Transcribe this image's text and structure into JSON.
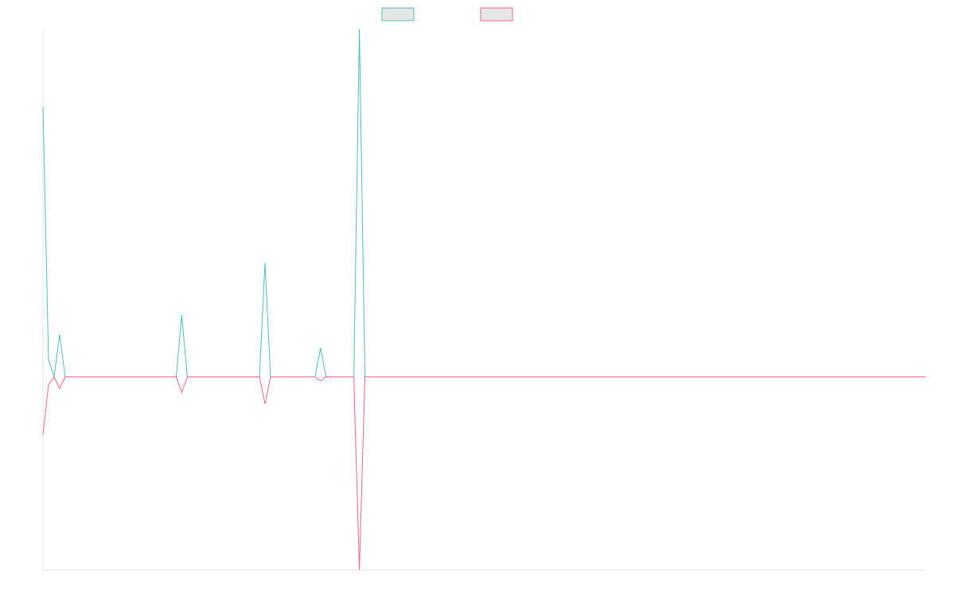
{
  "chart_data": {
    "type": "line",
    "title": "",
    "xlabel": "",
    "ylabel": "",
    "grid": false,
    "legend_position": "top-center",
    "x": [
      0,
      1,
      2,
      3,
      4,
      5,
      6,
      7,
      8,
      9,
      10,
      11,
      12,
      13,
      14,
      15,
      16,
      17,
      18,
      19,
      20,
      21,
      22,
      23,
      24,
      25,
      26,
      27,
      28,
      29,
      30,
      31,
      32,
      33,
      34,
      35,
      36,
      37,
      38,
      39,
      40,
      41,
      42,
      43,
      44,
      45,
      46,
      47,
      48,
      49,
      50,
      51,
      52,
      53,
      54,
      55,
      56,
      57,
      58,
      59,
      60,
      61,
      62,
      63,
      64,
      65,
      66,
      67,
      68,
      69,
      70,
      71,
      72,
      73,
      74,
      75,
      76,
      77,
      78,
      79,
      80,
      81,
      82,
      83,
      84,
      85,
      86,
      87,
      88,
      89,
      90,
      91,
      92,
      93,
      94,
      95,
      96,
      97,
      98,
      99,
      100,
      101,
      102,
      103,
      104,
      105,
      106,
      107,
      108,
      109,
      110,
      111,
      112,
      113,
      114,
      115,
      116,
      117,
      118,
      119,
      120,
      121,
      122,
      123,
      124,
      125,
      126,
      127,
      128,
      129,
      130,
      131,
      132,
      133,
      134,
      135,
      136,
      137,
      138,
      139,
      140,
      141,
      142,
      143,
      144,
      145,
      146,
      147,
      148,
      149,
      150,
      151,
      152,
      153,
      154,
      155,
      156,
      157,
      158,
      159
    ],
    "ylim": [
      -100,
      180
    ],
    "series": [
      {
        "name": "",
        "color": "#4bc0c0",
        "values": [
          140,
          9,
          0,
          22,
          0,
          0,
          0,
          0,
          0,
          0,
          0,
          0,
          0,
          0,
          0,
          0,
          0,
          0,
          0,
          0,
          0,
          0,
          0,
          0,
          0,
          32,
          0,
          0,
          0,
          0,
          0,
          0,
          0,
          0,
          0,
          0,
          0,
          0,
          0,
          0,
          59,
          0,
          0,
          0,
          0,
          0,
          0,
          0,
          0,
          0,
          15,
          0,
          0,
          0,
          0,
          0,
          0,
          180,
          0,
          0,
          0,
          0,
          0,
          0,
          0,
          0,
          0,
          0,
          0,
          0,
          0,
          0,
          0,
          0,
          0,
          0,
          0,
          0,
          0,
          0,
          0,
          0,
          0,
          0,
          0,
          0,
          0,
          0,
          0,
          0,
          0,
          0,
          0,
          0,
          0,
          0,
          0,
          0,
          0,
          0,
          0,
          0,
          0,
          0,
          0,
          0,
          0,
          0,
          0,
          0,
          0,
          0,
          0,
          0,
          0,
          0,
          0,
          0,
          0,
          0,
          0,
          0,
          0,
          0,
          0,
          0,
          0,
          0,
          0,
          0,
          0,
          0,
          0,
          0,
          0,
          0,
          0,
          0,
          0,
          0,
          0,
          0,
          0,
          0,
          0,
          0,
          0,
          0,
          0,
          0,
          0,
          0,
          0,
          0,
          0,
          0,
          0,
          0,
          0,
          0
        ]
      },
      {
        "name": "",
        "color": "#ff6384",
        "values": [
          -30,
          -4,
          0,
          -6,
          0,
          0,
          0,
          0,
          0,
          0,
          0,
          0,
          0,
          0,
          0,
          0,
          0,
          0,
          0,
          0,
          0,
          0,
          0,
          0,
          0,
          -8,
          0,
          0,
          0,
          0,
          0,
          0,
          0,
          0,
          0,
          0,
          0,
          0,
          0,
          0,
          -14,
          0,
          0,
          0,
          0,
          0,
          0,
          0,
          0,
          0,
          -2,
          0,
          0,
          0,
          0,
          0,
          0,
          -100,
          0,
          0,
          0,
          0,
          0,
          0,
          0,
          0,
          0,
          0,
          0,
          0,
          0,
          0,
          0,
          0,
          0,
          0,
          0,
          0,
          0,
          0,
          0,
          0,
          0,
          0,
          0,
          0,
          0,
          0,
          0,
          0,
          0,
          0,
          0,
          0,
          0,
          0,
          0,
          0,
          0,
          0,
          0,
          0,
          0,
          0,
          0,
          0,
          0,
          0,
          0,
          0,
          0,
          0,
          0,
          0,
          0,
          0,
          0,
          0,
          0,
          0,
          0,
          0,
          0,
          0,
          0,
          0,
          0,
          0,
          0,
          0,
          0,
          0,
          0,
          0,
          0,
          0,
          0,
          0,
          0,
          0,
          0,
          0,
          0,
          0,
          0,
          0,
          0,
          0,
          0,
          0,
          0,
          0,
          0,
          0,
          0,
          0,
          0,
          0,
          0,
          0
        ]
      }
    ]
  }
}
